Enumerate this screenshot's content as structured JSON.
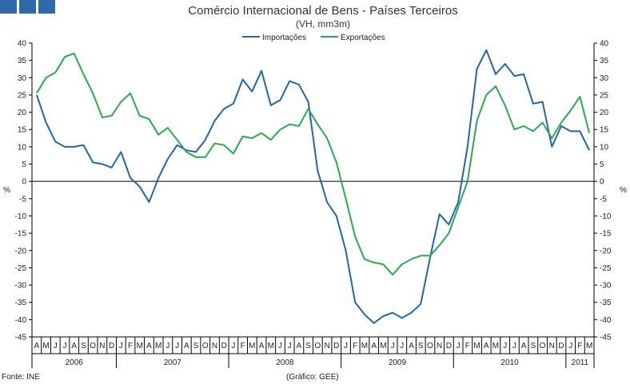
{
  "header": {
    "logo_colors": [
      "#2e6aa8",
      "#2e6aa8",
      "#2e6aa8"
    ]
  },
  "footer": {
    "source": "Fonte: INE",
    "credit": "(Gráfico: GEE)"
  },
  "chart_data": {
    "type": "line",
    "title": "Comércio Internacional de Bens - Países Terceiros",
    "subtitle": "(VH, mm3m)",
    "ylabel": "%",
    "ylim": [
      -45,
      40
    ],
    "yticks": [
      40,
      35,
      30,
      25,
      20,
      15,
      10,
      5,
      0,
      -5,
      -10,
      -15,
      -20,
      -25,
      -30,
      -35,
      -40,
      -45
    ],
    "grid": false,
    "legend_position": "top-center",
    "months": [
      "A",
      "M",
      "J",
      "J",
      "A",
      "S",
      "O",
      "N",
      "D",
      "J",
      "F",
      "M",
      "A",
      "M",
      "J",
      "J",
      "A",
      "S",
      "O",
      "N",
      "D",
      "J",
      "F",
      "M",
      "A",
      "M",
      "J",
      "J",
      "A",
      "S",
      "O",
      "N",
      "D",
      "J",
      "F",
      "M",
      "A",
      "M",
      "J",
      "J",
      "A",
      "S",
      "O",
      "N",
      "D",
      "J",
      "F",
      "M",
      "A",
      "M",
      "J",
      "J",
      "A",
      "S",
      "O",
      "N",
      "D",
      "J",
      "F",
      "M"
    ],
    "years": [
      {
        "label": "2006",
        "start": 0,
        "end": 9
      },
      {
        "label": "2007",
        "start": 9,
        "end": 21
      },
      {
        "label": "2008",
        "start": 21,
        "end": 33
      },
      {
        "label": "2009",
        "start": 33,
        "end": 45
      },
      {
        "label": "2010",
        "start": 45,
        "end": 57
      },
      {
        "label": "2011",
        "start": 57,
        "end": 60
      }
    ],
    "series": [
      {
        "name": "Importações",
        "color": "#2166a8",
        "values": [
          25,
          17,
          11.5,
          10,
          10,
          10.5,
          5.5,
          5,
          4,
          8.5,
          1,
          -1.5,
          -6,
          1,
          6.5,
          10.5,
          9,
          8.5,
          12,
          17.5,
          21,
          22.5,
          29.5,
          26,
          32,
          22,
          23.5,
          29,
          28,
          23,
          3,
          -6,
          -10,
          -20,
          -35,
          -38.5,
          -41,
          -39,
          -38,
          -39.5,
          -38,
          -35.5,
          -22,
          -9.5,
          -12.5,
          -6,
          10,
          32.5,
          38,
          31,
          34,
          30.5,
          31,
          22.5,
          23,
          10,
          16,
          14.5,
          14.5,
          9
        ]
      },
      {
        "name": "Exportações",
        "color": "#2aaa4e",
        "values": [
          25.5,
          30,
          31.5,
          36,
          37,
          31,
          25.5,
          18.5,
          19,
          23,
          25.5,
          19,
          18,
          13.5,
          15.5,
          12,
          8.5,
          7,
          7,
          11,
          10.5,
          8,
          13,
          12.5,
          14,
          12,
          15,
          16.5,
          16,
          21,
          16.5,
          12.5,
          5.5,
          -5,
          -16,
          -22.5,
          -23.5,
          -24,
          -27,
          -24,
          -22.5,
          -21.5,
          -21.5,
          -18.5,
          -15,
          -7.5,
          0,
          17.5,
          25,
          27.5,
          22,
          15,
          16,
          14.5,
          17,
          12.5,
          17,
          20.5,
          24.5,
          14
        ]
      }
    ]
  }
}
